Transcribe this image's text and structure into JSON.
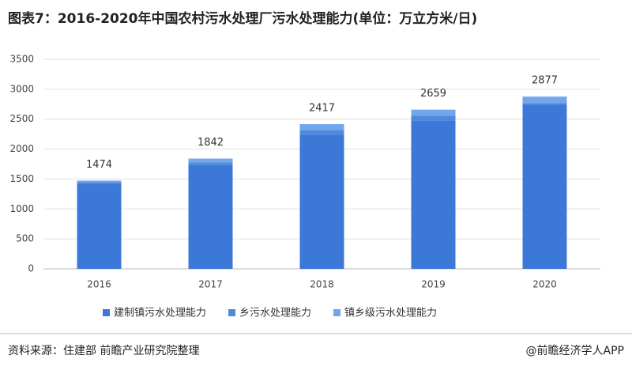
{
  "chart_data": {
    "type": "stacked-bar",
    "title": "图表7：2016-2020年中国农村污水处理厂污水处理能力(单位：万立方米/日)",
    "categories": [
      "2016",
      "2017",
      "2018",
      "2019",
      "2020"
    ],
    "series": [
      {
        "name": "建制镇污水处理能力",
        "color": "#3b78d8",
        "values": [
          1425,
          1740,
          2240,
          2480,
          2740
        ]
      },
      {
        "name": "乡污水处理能力",
        "color": "#4f8ade",
        "values": [
          25,
          40,
          80,
          80,
          30
        ]
      },
      {
        "name": "镇乡级污水处理能力",
        "color": "#73a6ea",
        "values": [
          24,
          62,
          97,
          99,
          107
        ]
      }
    ],
    "totals": [
      1474,
      1842,
      2417,
      2659,
      2877
    ],
    "ylim": [
      0,
      3500
    ],
    "yticks": [
      0,
      500,
      1000,
      1500,
      2000,
      2500,
      3000,
      3500
    ],
    "grid": true
  },
  "source": "资料来源：住建部 前瞻产业研究院整理",
  "credit": "@前瞻经济学人APP"
}
